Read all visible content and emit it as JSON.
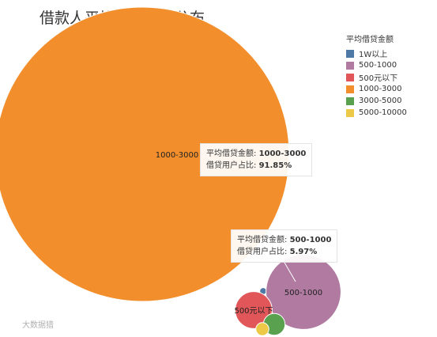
{
  "chart_data": {
    "type": "bubble",
    "title": "借款人平均借款金额分布",
    "legend_title": "平均借贷金额",
    "legend_position": "top-right",
    "series": [
      {
        "name": "1W以上",
        "color": "#4e79a7",
        "share": 0.05
      },
      {
        "name": "500-1000",
        "color": "#b07aa1",
        "share": 5.97
      },
      {
        "name": "500元以下",
        "color": "#e15759",
        "share": 1.45
      },
      {
        "name": "1000-3000",
        "color": "#f28e2b",
        "share": 91.85
      },
      {
        "name": "3000-5000",
        "color": "#59a14f",
        "share": 0.5
      },
      {
        "name": "5000-10000",
        "color": "#edc948",
        "share": 0.18
      }
    ]
  },
  "tooltips": [
    {
      "amount_label": "平均借贷金额:",
      "amount_value": "1000-3000",
      "share_label": "借贷用户占比:",
      "share_value": "91.85%"
    },
    {
      "amount_label": "平均借贷金额:",
      "amount_value": "500-1000",
      "share_label": "借贷用户占比:",
      "share_value": "5.97%"
    }
  ],
  "watermark": "大数据猎"
}
